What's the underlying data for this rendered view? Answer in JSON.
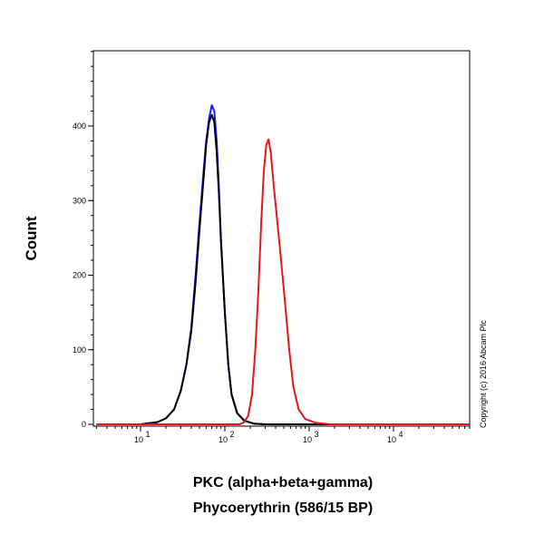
{
  "chart_data": {
    "type": "line",
    "xlabel": [
      "PKC (alpha+beta+gamma)",
      "Phycoerythrin (586/15 BP)"
    ],
    "ylabel": "Count",
    "x_scale": "log",
    "xlim": [
      3,
      1000000
    ],
    "ylim": [
      0,
      500
    ],
    "y_ticks": [
      0,
      100,
      200,
      300,
      400
    ],
    "x_ticks": [
      {
        "base": "10",
        "exp": "1",
        "value": 10
      },
      {
        "base": "10",
        "exp": "2",
        "value": 100
      },
      {
        "base": "10",
        "exp": "3",
        "value": 1000
      },
      {
        "base": "10",
        "exp": "4",
        "value": 10000
      }
    ],
    "copyright": "Copyright (c) 2016 Abcam Plc",
    "series": [
      {
        "color": "#1a1aff",
        "points": [
          [
            3,
            0
          ],
          [
            10,
            0
          ],
          [
            16,
            3
          ],
          [
            20,
            8
          ],
          [
            25,
            20
          ],
          [
            30,
            45
          ],
          [
            35,
            80
          ],
          [
            40,
            130
          ],
          [
            45,
            200
          ],
          [
            50,
            270
          ],
          [
            55,
            330
          ],
          [
            60,
            380
          ],
          [
            65,
            410
          ],
          [
            70,
            428
          ],
          [
            75,
            420
          ],
          [
            80,
            380
          ],
          [
            85,
            320
          ],
          [
            90,
            250
          ],
          [
            100,
            150
          ],
          [
            110,
            80
          ],
          [
            120,
            40
          ],
          [
            140,
            15
          ],
          [
            170,
            5
          ],
          [
            220,
            1
          ],
          [
            300,
            0
          ],
          [
            1000000,
            0
          ]
        ]
      },
      {
        "color": "#000000",
        "points": [
          [
            3,
            0
          ],
          [
            10,
            0
          ],
          [
            16,
            3
          ],
          [
            20,
            8
          ],
          [
            25,
            20
          ],
          [
            30,
            45
          ],
          [
            35,
            80
          ],
          [
            40,
            125
          ],
          [
            45,
            190
          ],
          [
            50,
            260
          ],
          [
            55,
            320
          ],
          [
            60,
            375
          ],
          [
            65,
            405
          ],
          [
            70,
            415
          ],
          [
            75,
            405
          ],
          [
            80,
            365
          ],
          [
            85,
            310
          ],
          [
            90,
            245
          ],
          [
            100,
            150
          ],
          [
            110,
            80
          ],
          [
            120,
            40
          ],
          [
            140,
            15
          ],
          [
            170,
            5
          ],
          [
            220,
            1
          ],
          [
            300,
            0
          ],
          [
            1000000,
            0
          ]
        ]
      },
      {
        "color": "#e8141c",
        "points": [
          [
            3,
            0
          ],
          [
            150,
            0
          ],
          [
            170,
            3
          ],
          [
            190,
            12
          ],
          [
            210,
            40
          ],
          [
            230,
            100
          ],
          [
            250,
            180
          ],
          [
            270,
            270
          ],
          [
            290,
            340
          ],
          [
            310,
            375
          ],
          [
            330,
            382
          ],
          [
            350,
            365
          ],
          [
            380,
            320
          ],
          [
            420,
            270
          ],
          [
            460,
            225
          ],
          [
            520,
            160
          ],
          [
            580,
            100
          ],
          [
            650,
            50
          ],
          [
            750,
            20
          ],
          [
            900,
            7
          ],
          [
            1200,
            2
          ],
          [
            1800,
            0
          ],
          [
            1000000,
            0
          ]
        ]
      }
    ]
  }
}
